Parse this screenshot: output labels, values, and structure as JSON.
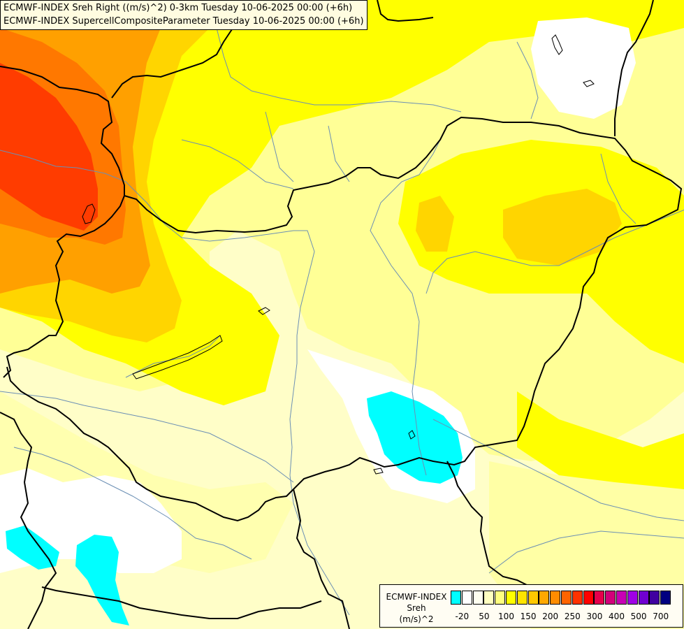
{
  "header": {
    "line1": "ECMWF-INDEX Sreh Right ((m/s)^2) 0-3km Tuesday 10-06-2025 00:00 (+6h)",
    "line2": "ECMWF-INDEX SupercellCompositeParameter Tuesday 10-06-2025 00:00 (+6h)"
  },
  "legend": {
    "source": "ECMWF-INDEX",
    "variable": "Sreh",
    "unit": "(m/s)^2",
    "colors": [
      "#00ffff",
      "#ffffff",
      "#fffff0",
      "#ffffc0",
      "#ffff80",
      "#ffff00",
      "#ffe400",
      "#ffc800",
      "#ffa800",
      "#ff8c00",
      "#ff6400",
      "#ff3200",
      "#ff0000",
      "#e6004c",
      "#d2007a",
      "#c800b4",
      "#a000e6",
      "#7000d0",
      "#4000a0",
      "#000080"
    ],
    "ticks": [
      "-20",
      "50",
      "100",
      "150",
      "200",
      "250",
      "300",
      "400",
      "500",
      "700"
    ]
  },
  "map": {
    "palette": {
      "cyan": "#00ffff",
      "white": "#ffffff",
      "pale": "#fffec8",
      "light": "#ffff96",
      "yellow": "#ffff00",
      "gold": "#ffd500",
      "orange": "#ffa000",
      "darkorange": "#ff7800",
      "red": "#ff3c00",
      "border": "#000000",
      "river": "#6b8fb4"
    }
  }
}
